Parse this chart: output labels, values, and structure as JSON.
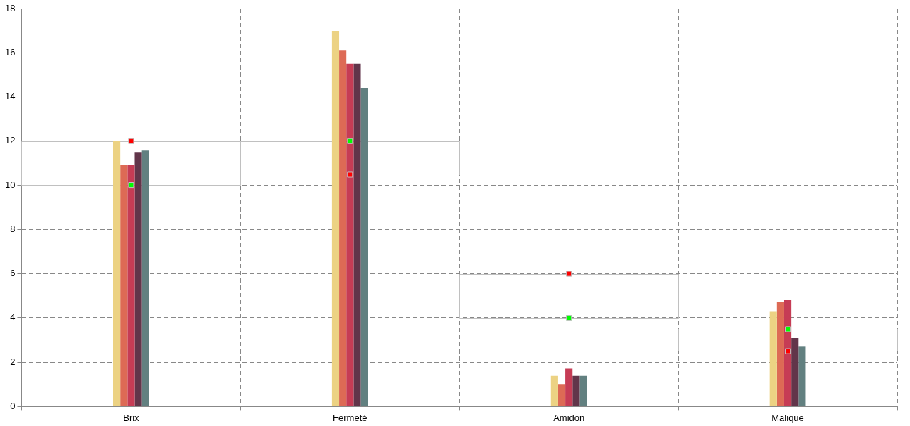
{
  "chart_data": {
    "type": "bar",
    "categories": [
      "Brix",
      "Fermeté",
      "Amidon",
      "Malique"
    ],
    "series": [
      {
        "color": "#ecd283",
        "values": [
          12,
          17,
          1.4,
          4.3
        ]
      },
      {
        "color": "#dd6a55",
        "values": [
          10.9,
          16.1,
          1.0,
          4.7
        ]
      },
      {
        "color": "#c63c55",
        "values": [
          10.9,
          15.5,
          1.7,
          4.8
        ]
      },
      {
        "color": "#62354a",
        "values": [
          11.5,
          15.5,
          1.4,
          3.1
        ]
      },
      {
        "color": "#628080",
        "values": [
          11.6,
          14.4,
          1.4,
          2.7
        ]
      },
      {
        "type": "scatter",
        "color": "#00ff00",
        "x": [
          "Brix",
          "Fermeté",
          "Amidon",
          "Malique"
        ],
        "values": [
          10,
          12,
          4,
          3.5
        ]
      },
      {
        "type": "scatter",
        "color": "#ff0000",
        "x": [
          "Brix",
          "Fermeté",
          "Amidon",
          "Malique"
        ],
        "values": [
          12,
          10.5,
          6,
          2.5
        ]
      }
    ],
    "marker": "square",
    "ylim": [
      0,
      18
    ],
    "yticks": [
      0,
      2,
      4,
      6,
      8,
      10,
      12,
      14,
      16,
      18
    ],
    "grid": true
  }
}
